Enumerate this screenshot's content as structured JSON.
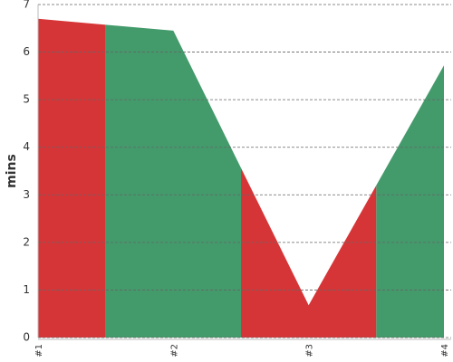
{
  "chart_data": {
    "type": "area",
    "ylabel": "mins",
    "categories": [
      "#1",
      "#2",
      "#3",
      "#4"
    ],
    "values": [
      6.7,
      6.45,
      0.68,
      5.72
    ],
    "colors": [
      "#d63537",
      "#439a6b",
      "#d63537",
      "#439a6b"
    ],
    "ylim": [
      0,
      7
    ],
    "yticks": [
      0,
      1,
      2,
      3,
      4,
      5,
      6,
      7
    ],
    "grid": true
  }
}
